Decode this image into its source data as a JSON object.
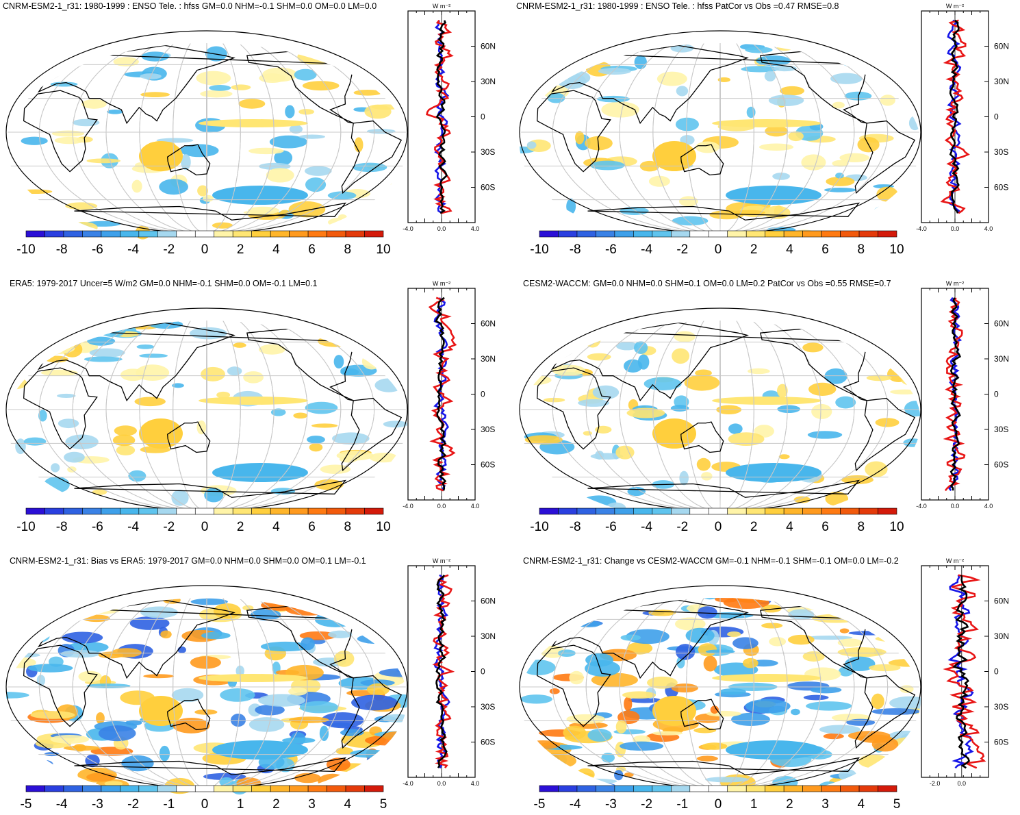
{
  "figure": {
    "variable": "hfss",
    "units_label": "W m⁻²",
    "colors": {
      "land_outline": "#000000",
      "grid": "#c8c8c8",
      "profile_blue": "#1515e8",
      "profile_red": "#e81515",
      "profile_black": "#000000"
    },
    "colorbar_colors": [
      "#2b0fd6",
      "#2a3fe0",
      "#2f62e2",
      "#3a82e6",
      "#3ea0ea",
      "#48b6ec",
      "#5fc4ee",
      "#a6d8ef",
      "#ffffff",
      "#ffffff",
      "#fff4a8",
      "#ffe673",
      "#ffcf3d",
      "#ffb52a",
      "#ff9a1e",
      "#ff7a12",
      "#f25a0c",
      "#e43a0a",
      "#d41a0a"
    ],
    "lat_labels": [
      "60N",
      "30N",
      "0",
      "30S",
      "60S"
    ]
  },
  "panels": [
    {
      "id": "panel-1",
      "title": "CNRM-ESM2-1_r31: 1980-1999 : ENSO Tele. : hfss GM=0.0 NHM=-0.1 SHM=0.0 OM=0.0 LM=0.0",
      "colorbar_ticks": [
        "-10",
        "-8",
        "-6",
        "-4",
        "-2",
        "0",
        "2",
        "4",
        "6",
        "8",
        "10"
      ],
      "zonal_ticks": [
        "-4.0",
        "0.0",
        "4.0"
      ],
      "chart_data": {
        "type": "heatmap",
        "projection": "Robinson",
        "xlim": [
          -4.0,
          4.0
        ],
        "ylim": [
          -90,
          90
        ],
        "colorbar_range": [
          -10,
          10
        ]
      }
    },
    {
      "id": "panel-2",
      "title": "CNRM-ESM2-1_r31: 1980-1999 : ENSO Tele. : hfss PatCor vs Obs =0.47 RMSE=0.8",
      "colorbar_ticks": [
        "-10",
        "-8",
        "-6",
        "-4",
        "-2",
        "0",
        "2",
        "4",
        "6",
        "8",
        "10"
      ],
      "zonal_ticks": [
        "-4.0",
        "0.0",
        "4.0"
      ],
      "chart_data": {
        "type": "heatmap",
        "projection": "Robinson",
        "xlim": [
          -4.0,
          4.0
        ],
        "ylim": [
          -90,
          90
        ],
        "colorbar_range": [
          -10,
          10
        ]
      }
    },
    {
      "id": "panel-3",
      "title": "ERA5: 1979-2017 Uncer=5 W/m2 GM=0.0 NHM=-0.1 SHM=0.0 OM=-0.1 LM=0.1",
      "colorbar_ticks": [
        "-10",
        "-8",
        "-6",
        "-4",
        "-2",
        "0",
        "2",
        "4",
        "6",
        "8",
        "10"
      ],
      "zonal_ticks": [
        "-4.0",
        "0.0",
        "4.0"
      ],
      "chart_data": {
        "type": "heatmap",
        "projection": "Robinson",
        "xlim": [
          -4.0,
          4.0
        ],
        "ylim": [
          -90,
          90
        ],
        "colorbar_range": [
          -10,
          10
        ]
      }
    },
    {
      "id": "panel-4",
      "title": "CESM2-WACCM: GM=0.0 NHM=0.0 SHM=0.1 OM=0.0 LM=0.2 PatCor vs Obs =0.55 RMSE=0.7",
      "colorbar_ticks": [
        "-10",
        "-8",
        "-6",
        "-4",
        "-2",
        "0",
        "2",
        "4",
        "6",
        "8",
        "10"
      ],
      "zonal_ticks": [
        "-4.0",
        "0.0",
        "4.0"
      ],
      "chart_data": {
        "type": "heatmap",
        "projection": "Robinson",
        "xlim": [
          -4.0,
          4.0
        ],
        "ylim": [
          -90,
          90
        ],
        "colorbar_range": [
          -10,
          10
        ]
      }
    },
    {
      "id": "panel-5",
      "title": "CNRM-ESM2-1_r31: Bias vs ERA5: 1979-2017 GM=0.0 NHM=0.0 SHM=0.0 OM=0.1 LM=-0.1",
      "colorbar_ticks": [
        "-5",
        "-4",
        "-3",
        "-2",
        "-1",
        "0",
        "1",
        "2",
        "3",
        "4",
        "5"
      ],
      "zonal_ticks": [
        "-4.0",
        "0.0",
        "4.0"
      ],
      "chart_data": {
        "type": "heatmap",
        "projection": "Robinson",
        "xlim": [
          -4.0,
          4.0
        ],
        "ylim": [
          -90,
          90
        ],
        "colorbar_range": [
          -5,
          5
        ]
      }
    },
    {
      "id": "panel-6",
      "title": "CNRM-ESM2-1_r31: Change vs CESM2-WACCM GM=-0.1 NHM=-0.1 SHM=-0.1 OM=0.0 LM=-0.2",
      "colorbar_ticks": [
        "-5",
        "-4",
        "-3",
        "-2",
        "-1",
        "0",
        "1",
        "2",
        "3",
        "4",
        "5"
      ],
      "zonal_ticks": [
        "-2.0",
        "0.0"
      ],
      "chart_data": {
        "type": "heatmap",
        "projection": "Robinson",
        "xlim": [
          -3.0,
          2.0
        ],
        "ylim": [
          -90,
          90
        ],
        "colorbar_range": [
          -5,
          5
        ]
      }
    }
  ]
}
